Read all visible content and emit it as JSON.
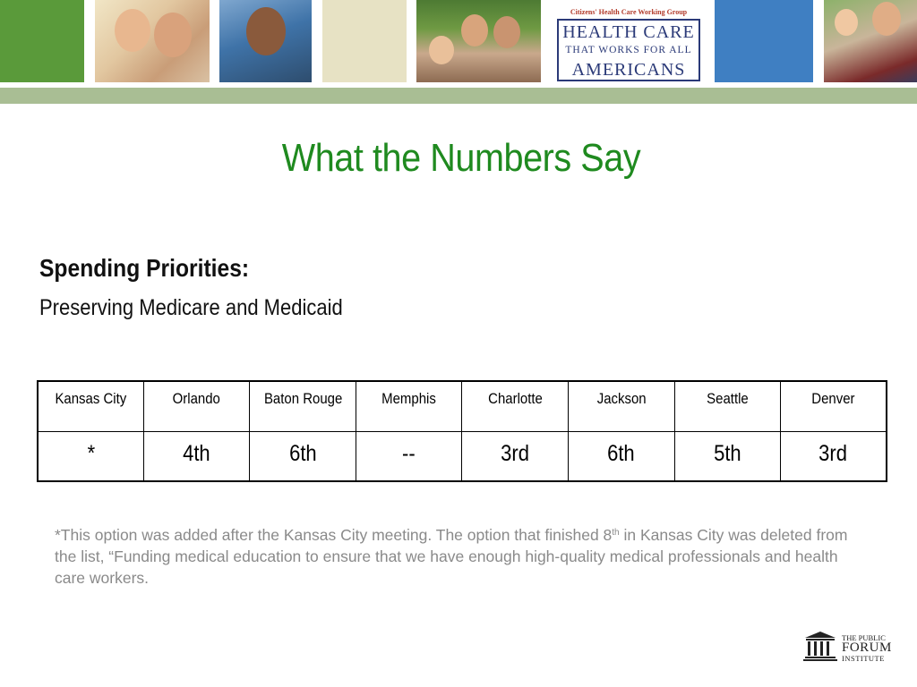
{
  "banner": {
    "logo": {
      "tagline": "Citizens' Health Care Working Group",
      "line1": "HEALTH CARE",
      "line2": "THAT WORKS FOR ALL",
      "line3": "AMERICANS"
    }
  },
  "slide": {
    "title": "What the Numbers Say",
    "subheading": "Spending Priorities:",
    "subline": "Preserving Medicare and Medicaid"
  },
  "table": {
    "cities": [
      "Kansas City",
      "Orlando",
      "Baton Rouge",
      "Memphis",
      "Charlotte",
      "Jackson",
      "Seattle",
      "Denver"
    ],
    "ranks": [
      "*",
      "4th",
      "6th",
      "--",
      "3rd",
      "6th",
      "5th",
      "3rd"
    ]
  },
  "footnote": {
    "part1": "*This option was added after the Kansas City meeting. The option that finished 8",
    "sup": "th",
    "part2": " in Kansas City was deleted from the list, “Funding medical education to ensure that we have enough high-quality medical professionals and health care workers."
  },
  "footer_logo": {
    "line1": "THE PUBLIC",
    "line2": "FORUM",
    "line3": "INSTITUTE"
  },
  "colors": {
    "title": "#1f8a1f",
    "banner_green": "#5a9a3a",
    "banner_blue": "#3f7fc2",
    "logo_navy": "#2b3a78",
    "footnote": "#8a8a8a"
  }
}
